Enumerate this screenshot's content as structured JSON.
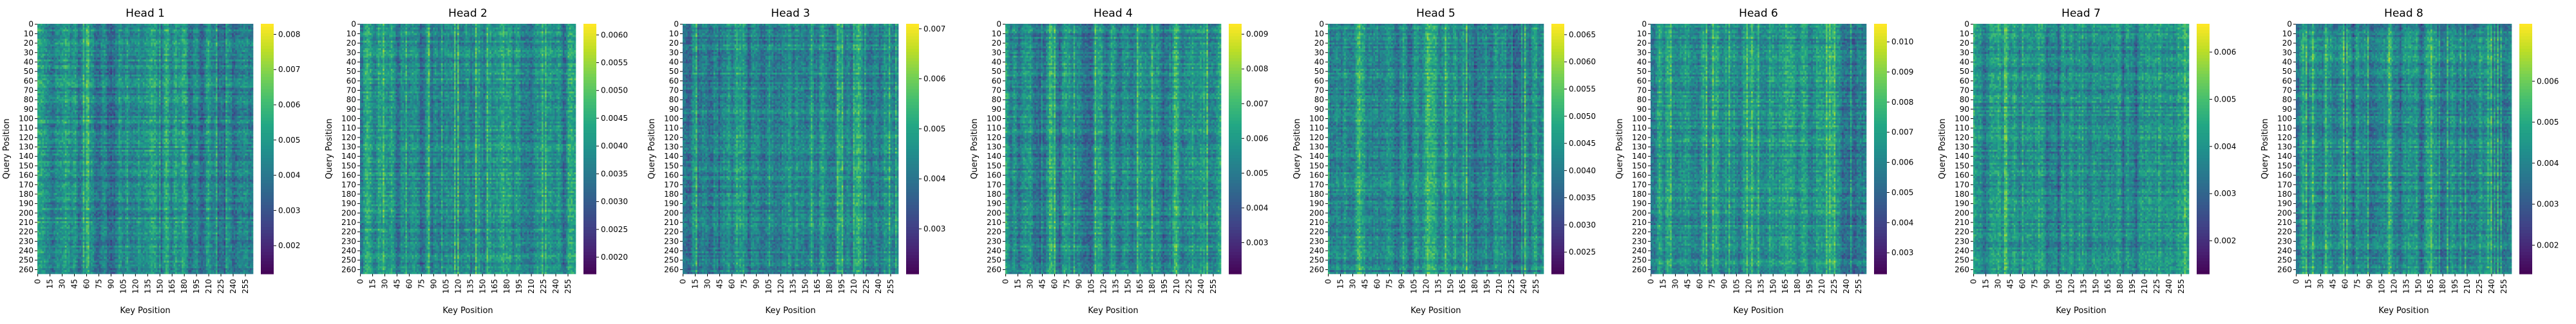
{
  "figure": {
    "panels": 8
  },
  "chart_data": [
    {
      "type": "heatmap",
      "title": "Head 1",
      "xlabel": "Key Position",
      "ylabel": "Query Position",
      "x_ticks": [
        0,
        15,
        30,
        45,
        60,
        75,
        90,
        105,
        120,
        135,
        150,
        165,
        180,
        195,
        210,
        225,
        240,
        255
      ],
      "y_ticks": [
        0,
        10,
        20,
        30,
        40,
        50,
        60,
        70,
        80,
        90,
        100,
        110,
        120,
        130,
        140,
        150,
        160,
        170,
        180,
        190,
        200,
        210,
        220,
        230,
        240,
        250,
        260
      ],
      "axis_range": [
        0,
        265
      ],
      "colormap": "viridis",
      "colorbar": {
        "min": 0.0012,
        "max": 0.0083,
        "ticks": [
          0.002,
          0.003,
          0.004,
          0.005,
          0.006,
          0.007,
          0.008
        ],
        "tick_labels": [
          "0.002",
          "0.003",
          "0.004",
          "0.005",
          "0.006",
          "0.007",
          "0.008"
        ]
      },
      "grid": false
    },
    {
      "type": "heatmap",
      "title": "Head 2",
      "xlabel": "Key Position",
      "ylabel": "Query Position",
      "x_ticks": [
        0,
        15,
        30,
        45,
        60,
        75,
        90,
        105,
        120,
        135,
        150,
        165,
        180,
        195,
        210,
        225,
        240,
        255
      ],
      "y_ticks": [
        0,
        10,
        20,
        30,
        40,
        50,
        60,
        70,
        80,
        90,
        100,
        110,
        120,
        130,
        140,
        150,
        160,
        170,
        180,
        190,
        200,
        210,
        220,
        230,
        240,
        250,
        260
      ],
      "axis_range": [
        0,
        265
      ],
      "colormap": "viridis",
      "colorbar": {
        "min": 0.0017,
        "max": 0.0062,
        "ticks": [
          0.002,
          0.0025,
          0.003,
          0.0035,
          0.004,
          0.0045,
          0.005,
          0.0055,
          0.006
        ],
        "tick_labels": [
          "0.0020",
          "0.0025",
          "0.0030",
          "0.0035",
          "0.0040",
          "0.0045",
          "0.0050",
          "0.0055",
          "0.0060"
        ]
      },
      "grid": false
    },
    {
      "type": "heatmap",
      "title": "Head 3",
      "xlabel": "Key Position",
      "ylabel": "Query Position",
      "x_ticks": [
        0,
        15,
        30,
        45,
        60,
        75,
        90,
        105,
        120,
        135,
        150,
        165,
        180,
        195,
        210,
        225,
        240,
        255
      ],
      "y_ticks": [
        0,
        10,
        20,
        30,
        40,
        50,
        60,
        70,
        80,
        90,
        100,
        110,
        120,
        130,
        140,
        150,
        160,
        170,
        180,
        190,
        200,
        210,
        220,
        230,
        240,
        250,
        260
      ],
      "axis_range": [
        0,
        265
      ],
      "colormap": "viridis",
      "colorbar": {
        "min": 0.0021,
        "max": 0.0071,
        "ticks": [
          0.003,
          0.004,
          0.005,
          0.006,
          0.007
        ],
        "tick_labels": [
          "0.003",
          "0.004",
          "0.005",
          "0.006",
          "0.007"
        ]
      },
      "grid": false
    },
    {
      "type": "heatmap",
      "title": "Head 4",
      "xlabel": "Key Position",
      "ylabel": "Query Position",
      "x_ticks": [
        0,
        15,
        30,
        45,
        60,
        75,
        90,
        105,
        120,
        135,
        150,
        165,
        180,
        195,
        210,
        225,
        240,
        255
      ],
      "y_ticks": [
        0,
        10,
        20,
        30,
        40,
        50,
        60,
        70,
        80,
        90,
        100,
        110,
        120,
        130,
        140,
        150,
        160,
        170,
        180,
        190,
        200,
        210,
        220,
        230,
        240,
        250,
        260
      ],
      "axis_range": [
        0,
        265
      ],
      "colormap": "viridis",
      "colorbar": {
        "min": 0.0021,
        "max": 0.0093,
        "ticks": [
          0.003,
          0.004,
          0.005,
          0.006,
          0.007,
          0.008,
          0.009
        ],
        "tick_labels": [
          "0.003",
          "0.004",
          "0.005",
          "0.006",
          "0.007",
          "0.008",
          "0.009"
        ]
      },
      "grid": false
    },
    {
      "type": "heatmap",
      "title": "Head 5",
      "xlabel": "Key Position",
      "ylabel": "Query Position",
      "x_ticks": [
        0,
        15,
        30,
        45,
        60,
        75,
        90,
        105,
        120,
        135,
        150,
        165,
        180,
        195,
        210,
        225,
        240,
        255
      ],
      "y_ticks": [
        0,
        10,
        20,
        30,
        40,
        50,
        60,
        70,
        80,
        90,
        100,
        110,
        120,
        130,
        140,
        150,
        160,
        170,
        180,
        190,
        200,
        210,
        220,
        230,
        240,
        250,
        260
      ],
      "axis_range": [
        0,
        265
      ],
      "colormap": "viridis",
      "colorbar": {
        "min": 0.0021,
        "max": 0.0067,
        "ticks": [
          0.0025,
          0.003,
          0.0035,
          0.004,
          0.0045,
          0.005,
          0.0055,
          0.006,
          0.0065
        ],
        "tick_labels": [
          "0.0025",
          "0.0030",
          "0.0035",
          "0.0040",
          "0.0045",
          "0.0050",
          "0.0055",
          "0.0060",
          "0.0065"
        ]
      },
      "grid": false
    },
    {
      "type": "heatmap",
      "title": "Head 6",
      "xlabel": "Key Position",
      "ylabel": "Query Position",
      "x_ticks": [
        0,
        15,
        30,
        45,
        60,
        75,
        90,
        105,
        120,
        135,
        150,
        165,
        180,
        195,
        210,
        225,
        240,
        255
      ],
      "y_ticks": [
        0,
        10,
        20,
        30,
        40,
        50,
        60,
        70,
        80,
        90,
        100,
        110,
        120,
        130,
        140,
        150,
        160,
        170,
        180,
        190,
        200,
        210,
        220,
        230,
        240,
        250,
        260
      ],
      "axis_range": [
        0,
        265
      ],
      "colormap": "viridis",
      "colorbar": {
        "min": 0.0023,
        "max": 0.0106,
        "ticks": [
          0.003,
          0.004,
          0.005,
          0.006,
          0.007,
          0.008,
          0.009,
          0.01
        ],
        "tick_labels": [
          "0.003",
          "0.004",
          "0.005",
          "0.006",
          "0.007",
          "0.008",
          "0.009",
          "0.010"
        ]
      },
      "grid": false
    },
    {
      "type": "heatmap",
      "title": "Head 7",
      "xlabel": "Key Position",
      "ylabel": "Query Position",
      "x_ticks": [
        0,
        15,
        30,
        45,
        60,
        75,
        90,
        105,
        120,
        135,
        150,
        165,
        180,
        195,
        210,
        225,
        240,
        255
      ],
      "y_ticks": [
        0,
        10,
        20,
        30,
        40,
        50,
        60,
        70,
        80,
        90,
        100,
        110,
        120,
        130,
        140,
        150,
        160,
        170,
        180,
        190,
        200,
        210,
        220,
        230,
        240,
        250,
        260
      ],
      "axis_range": [
        0,
        265
      ],
      "colormap": "viridis",
      "colorbar": {
        "min": 0.0013,
        "max": 0.0066,
        "ticks": [
          0.002,
          0.003,
          0.004,
          0.005,
          0.006
        ],
        "tick_labels": [
          "0.002",
          "0.003",
          "0.004",
          "0.005",
          "0.006"
        ]
      },
      "grid": false
    },
    {
      "type": "heatmap",
      "title": "Head 8",
      "xlabel": "Key Position",
      "ylabel": "Query Position",
      "x_ticks": [
        0,
        15,
        30,
        45,
        60,
        75,
        90,
        105,
        120,
        135,
        150,
        165,
        180,
        195,
        210,
        225,
        240,
        255
      ],
      "y_ticks": [
        0,
        10,
        20,
        30,
        40,
        50,
        60,
        70,
        80,
        90,
        100,
        110,
        120,
        130,
        140,
        150,
        160,
        170,
        180,
        190,
        200,
        210,
        220,
        230,
        240,
        250,
        260
      ],
      "axis_range": [
        0,
        265
      ],
      "colormap": "viridis",
      "colorbar": {
        "min": 0.0013,
        "max": 0.0074,
        "ticks": [
          0.002,
          0.003,
          0.004,
          0.005,
          0.006
        ],
        "tick_labels": [
          "0.002",
          "0.003",
          "0.004",
          "0.005",
          "0.006"
        ]
      },
      "grid": false
    }
  ]
}
